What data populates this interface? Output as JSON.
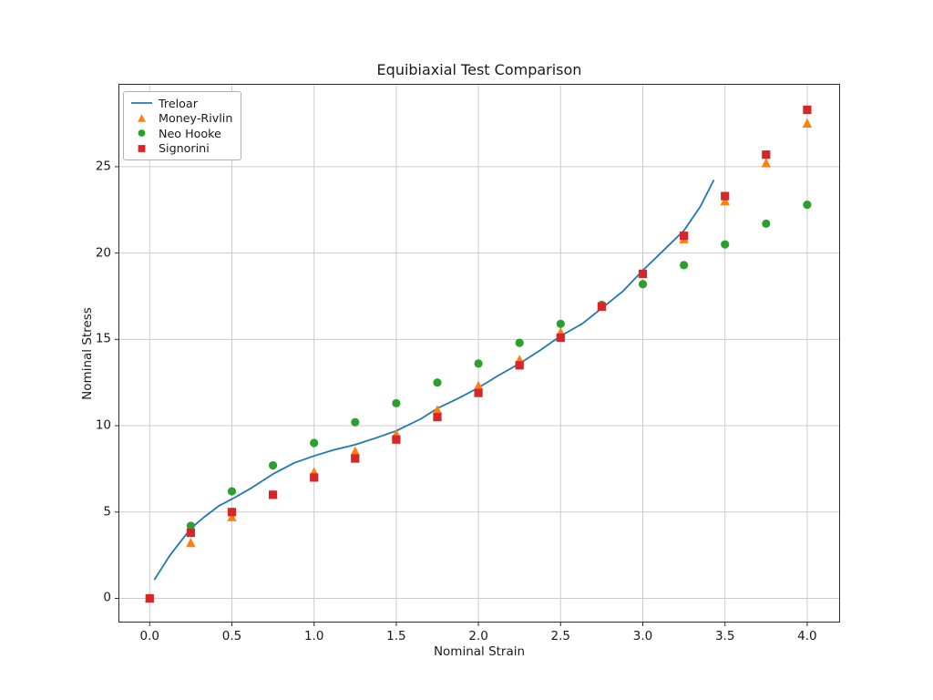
{
  "figure": {
    "background": "#ffffff"
  },
  "chart_data": {
    "type": "line+scatter",
    "title": "Equibiaxial Test Comparison",
    "xlabel": "Nominal Strain",
    "ylabel": "Nominal Stress",
    "xlim": [
      -0.19,
      4.2
    ],
    "ylim": [
      -1.4,
      29.8
    ],
    "grid": true,
    "legend_position": "upper-left",
    "xticks": [
      0.0,
      0.5,
      1.0,
      1.5,
      2.0,
      2.5,
      3.0,
      3.5,
      4.0
    ],
    "xtick_labels": [
      "0.0",
      "0.5",
      "1.0",
      "1.5",
      "2.0",
      "2.5",
      "3.0",
      "3.5",
      "4.0"
    ],
    "yticks": [
      0,
      5,
      10,
      15,
      20,
      25
    ],
    "ytick_labels": [
      "0",
      "5",
      "10",
      "15",
      "20",
      "25"
    ],
    "x_values": [
      0.0,
      0.25,
      0.5,
      0.75,
      1.0,
      1.25,
      1.5,
      1.75,
      2.0,
      2.25,
      2.5,
      2.75,
      3.0,
      3.25,
      3.5,
      3.75,
      4.0
    ],
    "style": {
      "grid_color": "#cccccc",
      "spine_color": "#2b2b2b",
      "text_color": "#1a1a1a",
      "background": "#ffffff"
    },
    "series": [
      {
        "name": "Treloar",
        "type": "line",
        "color": "#1f77b4",
        "points": [
          [
            0.03,
            1.1
          ],
          [
            0.07,
            1.7
          ],
          [
            0.12,
            2.45
          ],
          [
            0.18,
            3.2
          ],
          [
            0.25,
            4.05
          ],
          [
            0.33,
            4.7
          ],
          [
            0.42,
            5.35
          ],
          [
            0.5,
            5.75
          ],
          [
            0.62,
            6.4
          ],
          [
            0.75,
            7.2
          ],
          [
            0.88,
            7.85
          ],
          [
            1.0,
            8.25
          ],
          [
            1.12,
            8.6
          ],
          [
            1.25,
            8.9
          ],
          [
            1.38,
            9.3
          ],
          [
            1.5,
            9.7
          ],
          [
            1.65,
            10.4
          ],
          [
            1.75,
            11.0
          ],
          [
            1.88,
            11.6
          ],
          [
            2.0,
            12.2
          ],
          [
            2.12,
            12.9
          ],
          [
            2.25,
            13.6
          ],
          [
            2.38,
            14.4
          ],
          [
            2.5,
            15.2
          ],
          [
            2.63,
            15.9
          ],
          [
            2.75,
            16.8
          ],
          [
            2.88,
            17.8
          ],
          [
            3.0,
            19.0
          ],
          [
            3.12,
            20.1
          ],
          [
            3.25,
            21.3
          ],
          [
            3.35,
            22.7
          ],
          [
            3.43,
            24.2
          ]
        ]
      },
      {
        "name": "Money-Rivlin",
        "type": "scatter",
        "marker": "triangle-up",
        "color": "#ff7f0e",
        "y": [
          0,
          3.2,
          4.7,
          6.0,
          7.3,
          8.5,
          9.5,
          10.9,
          12.3,
          13.8,
          15.4,
          16.9,
          18.8,
          20.8,
          23.0,
          25.2,
          27.5
        ]
      },
      {
        "name": "Neo Hooke",
        "type": "scatter",
        "marker": "circle",
        "color": "#2ca02c",
        "y": [
          0,
          4.2,
          6.2,
          7.7,
          9.0,
          10.2,
          11.3,
          12.5,
          13.6,
          14.8,
          15.9,
          17.0,
          18.2,
          19.3,
          20.5,
          21.7,
          22.8
        ]
      },
      {
        "name": "Signorini",
        "type": "scatter",
        "marker": "square",
        "color": "#d62728",
        "y": [
          0,
          3.8,
          5.0,
          6.0,
          7.0,
          8.1,
          9.2,
          10.5,
          11.9,
          13.5,
          15.1,
          16.9,
          18.8,
          21.0,
          23.3,
          25.7,
          28.3
        ]
      }
    ]
  }
}
